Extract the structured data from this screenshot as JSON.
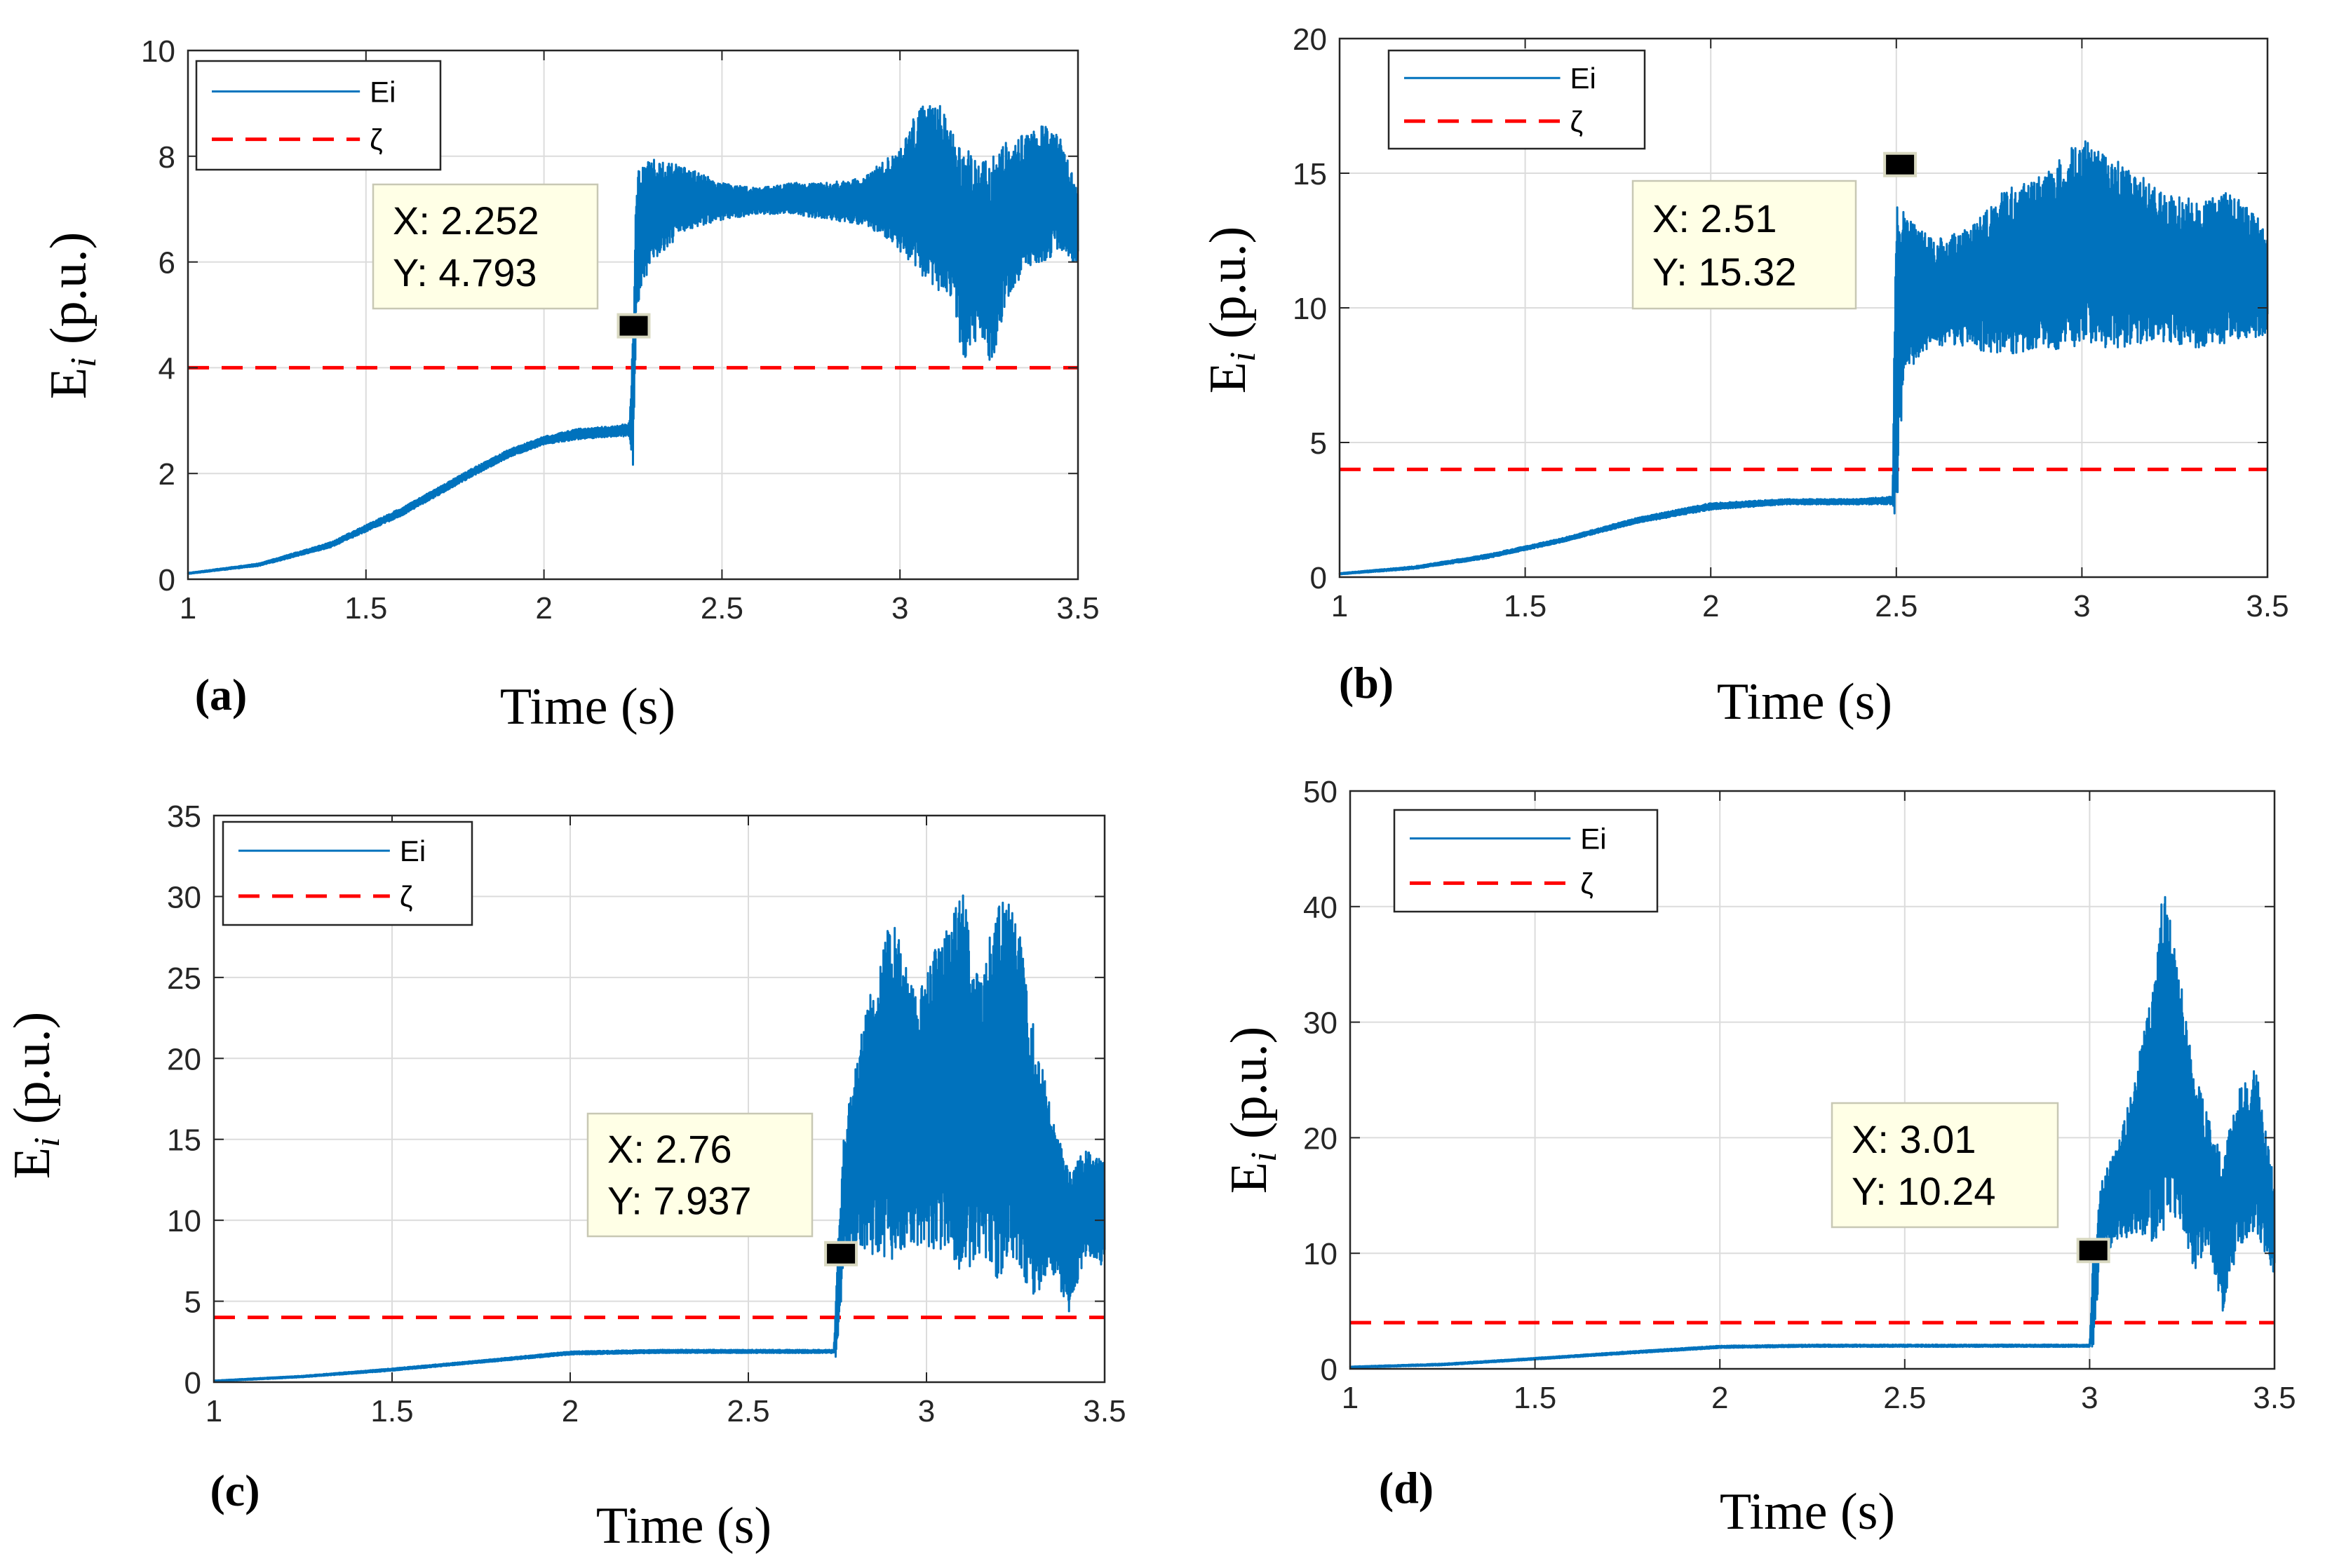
{
  "chart_data": [
    {
      "id": "a",
      "type": "line",
      "panel_label": "(a)",
      "xlabel": "Time (s)",
      "ylabel_main": "E",
      "ylabel_sub": "i",
      "ylabel_rest": " (p.u.)",
      "xlim": [
        1,
        3.5
      ],
      "ylim": [
        0,
        10
      ],
      "xticks": [
        1,
        1.5,
        2,
        2.5,
        3,
        3.5
      ],
      "xtick_labels": [
        "1",
        "1.5",
        "2",
        "2.5",
        "3",
        "3.5"
      ],
      "yticks": [
        0,
        2,
        4,
        6,
        8,
        10
      ],
      "ytick_labels": [
        "0",
        "2",
        "4",
        "6",
        "8",
        "10"
      ],
      "grid": true,
      "legend": [
        {
          "label": "Ei",
          "style": "solid",
          "color": "#0072BD"
        },
        {
          "label": "ζ",
          "style": "dashed",
          "color": "#FF0000"
        }
      ],
      "threshold": 4,
      "datatip": {
        "x": 2.252,
        "y": 4.793,
        "x_text": "X: 2.252",
        "y_text": "Y: 4.793"
      },
      "envelope": [
        [
          1.0,
          0.1,
          0.12
        ],
        [
          1.2,
          0.25,
          0.3
        ],
        [
          1.4,
          0.6,
          0.7
        ],
        [
          1.6,
          1.2,
          1.35
        ],
        [
          1.8,
          1.95,
          2.1
        ],
        [
          1.9,
          2.3,
          2.45
        ],
        [
          2.0,
          2.55,
          2.7
        ],
        [
          2.1,
          2.65,
          2.85
        ],
        [
          2.2,
          2.7,
          2.9
        ],
        [
          2.24,
          2.7,
          2.95
        ],
        [
          2.25,
          2.1,
          4.8
        ],
        [
          2.26,
          5.1,
          7.7
        ],
        [
          2.3,
          6.0,
          7.95
        ],
        [
          2.4,
          6.6,
          7.8
        ],
        [
          2.5,
          6.8,
          7.5
        ],
        [
          2.6,
          6.9,
          7.4
        ],
        [
          2.7,
          6.9,
          7.5
        ],
        [
          2.8,
          6.8,
          7.5
        ],
        [
          2.9,
          6.7,
          7.6
        ],
        [
          2.95,
          6.5,
          7.9
        ],
        [
          3.0,
          6.2,
          8.1
        ],
        [
          3.05,
          5.8,
          8.9
        ],
        [
          3.1,
          5.5,
          9.1
        ],
        [
          3.15,
          5.2,
          8.5
        ],
        [
          3.18,
          4.0,
          8.2
        ],
        [
          3.22,
          4.6,
          7.9
        ],
        [
          3.26,
          3.9,
          8.0
        ],
        [
          3.3,
          5.2,
          8.3
        ],
        [
          3.35,
          5.8,
          8.4
        ],
        [
          3.4,
          6.0,
          8.6
        ],
        [
          3.45,
          6.2,
          8.4
        ],
        [
          3.5,
          5.9,
          7.3
        ]
      ]
    },
    {
      "id": "b",
      "type": "line",
      "panel_label": "(b)",
      "xlabel": "Time (s)",
      "ylabel_main": "E",
      "ylabel_sub": "i",
      "ylabel_rest": " (p.u.)",
      "xlim": [
        1,
        3.5
      ],
      "ylim": [
        0,
        20
      ],
      "xticks": [
        1,
        1.5,
        2,
        2.5,
        3,
        3.5
      ],
      "xtick_labels": [
        "1",
        "1.5",
        "2",
        "2.5",
        "3",
        "3.5"
      ],
      "yticks": [
        0,
        5,
        10,
        15,
        20
      ],
      "ytick_labels": [
        "0",
        "5",
        "10",
        "15",
        "20"
      ],
      "grid": true,
      "legend": [
        {
          "label": "Ei",
          "style": "solid",
          "color": "#0072BD"
        },
        {
          "label": "ζ",
          "style": "dashed",
          "color": "#FF0000"
        }
      ],
      "threshold": 4,
      "datatip": {
        "x": 2.51,
        "y": 15.32,
        "x_text": "X: 2.51",
        "y_text": "Y: 15.32"
      },
      "envelope": [
        [
          1.0,
          0.1,
          0.15
        ],
        [
          1.2,
          0.3,
          0.4
        ],
        [
          1.4,
          0.7,
          0.85
        ],
        [
          1.6,
          1.3,
          1.45
        ],
        [
          1.8,
          2.0,
          2.2
        ],
        [
          2.0,
          2.5,
          2.75
        ],
        [
          2.2,
          2.7,
          2.9
        ],
        [
          2.4,
          2.7,
          2.9
        ],
        [
          2.49,
          2.7,
          3.0
        ],
        [
          2.5,
          1.7,
          15.3
        ],
        [
          2.52,
          7.5,
          13.5
        ],
        [
          2.6,
          8.6,
          12.5
        ],
        [
          2.7,
          8.5,
          13.0
        ],
        [
          2.8,
          8.2,
          14.5
        ],
        [
          2.9,
          8.4,
          15.0
        ],
        [
          3.0,
          8.6,
          16.3
        ],
        [
          3.1,
          8.5,
          15.5
        ],
        [
          3.2,
          8.8,
          14.5
        ],
        [
          3.3,
          8.5,
          14.0
        ],
        [
          3.4,
          8.7,
          14.3
        ],
        [
          3.5,
          9.0,
          13.0
        ]
      ]
    },
    {
      "id": "c",
      "type": "line",
      "panel_label": "(c)",
      "xlabel": "Time (s)",
      "ylabel_main": "E",
      "ylabel_sub": "i",
      "ylabel_rest": " (p.u.)",
      "xlim": [
        1,
        3.5
      ],
      "ylim": [
        0,
        35
      ],
      "xticks": [
        1,
        1.5,
        2,
        2.5,
        3,
        3.5
      ],
      "xtick_labels": [
        "1",
        "1.5",
        "2",
        "2.5",
        "3",
        "3.5"
      ],
      "yticks": [
        0,
        5,
        10,
        15,
        20,
        25,
        30,
        35
      ],
      "ytick_labels": [
        "0",
        "5",
        "10",
        "15",
        "20",
        "25",
        "30",
        "35"
      ],
      "grid": true,
      "legend": [
        {
          "label": "Ei",
          "style": "solid",
          "color": "#0072BD"
        },
        {
          "label": "ζ",
          "style": "dashed",
          "color": "#FF0000"
        }
      ],
      "threshold": 4,
      "datatip": {
        "x": 2.76,
        "y": 7.937,
        "x_text": "X: 2.76",
        "y_text": "Y: 7.937"
      },
      "envelope": [
        [
          1.0,
          0.05,
          0.1
        ],
        [
          1.25,
          0.3,
          0.4
        ],
        [
          1.5,
          0.7,
          0.85
        ],
        [
          1.75,
          1.2,
          1.35
        ],
        [
          2.0,
          1.7,
          1.9
        ],
        [
          2.25,
          1.8,
          2.0
        ],
        [
          2.5,
          1.8,
          2.0
        ],
        [
          2.74,
          1.8,
          2.0
        ],
        [
          2.75,
          1.3,
          7.9
        ],
        [
          2.77,
          8.0,
          16.0
        ],
        [
          2.82,
          8.0,
          22.0
        ],
        [
          2.9,
          7.5,
          29.0
        ],
        [
          2.97,
          8.5,
          24.0
        ],
        [
          3.05,
          8.0,
          28.0
        ],
        [
          3.1,
          6.5,
          30.5
        ],
        [
          3.15,
          8.0,
          25.0
        ],
        [
          3.2,
          6.0,
          29.5
        ],
        [
          3.25,
          7.5,
          30.0
        ],
        [
          3.3,
          5.0,
          22.0
        ],
        [
          3.35,
          7.0,
          17.0
        ],
        [
          3.4,
          4.3,
          13.0
        ],
        [
          3.45,
          8.0,
          14.5
        ],
        [
          3.5,
          7.0,
          14.0
        ]
      ]
    },
    {
      "id": "d",
      "type": "line",
      "panel_label": "(d)",
      "xlabel": "Time (s)",
      "ylabel_main": "E",
      "ylabel_sub": "i",
      "ylabel_rest": " (p.u.)",
      "xlim": [
        1,
        3.5
      ],
      "ylim": [
        0,
        50
      ],
      "xticks": [
        1,
        1.5,
        2,
        2.5,
        3,
        3.5
      ],
      "xtick_labels": [
        "1",
        "1.5",
        "2",
        "2.5",
        "3",
        "3.5"
      ],
      "yticks": [
        0,
        10,
        20,
        30,
        40,
        50
      ],
      "ytick_labels": [
        "0",
        "10",
        "20",
        "30",
        "40",
        "50"
      ],
      "grid": true,
      "legend": [
        {
          "label": "Ei",
          "style": "solid",
          "color": "#0072BD"
        },
        {
          "label": "ζ",
          "style": "dashed",
          "color": "#FF0000"
        }
      ],
      "threshold": 4,
      "datatip": {
        "x": 3.01,
        "y": 10.24,
        "x_text": "X: 3.01",
        "y_text": "Y: 10.24"
      },
      "envelope": [
        [
          1.0,
          0.1,
          0.2
        ],
        [
          1.25,
          0.3,
          0.45
        ],
        [
          1.5,
          0.8,
          0.95
        ],
        [
          1.75,
          1.3,
          1.5
        ],
        [
          2.0,
          1.8,
          2.0
        ],
        [
          2.25,
          1.9,
          2.1
        ],
        [
          2.5,
          1.9,
          2.1
        ],
        [
          2.75,
          1.9,
          2.1
        ],
        [
          3.0,
          1.9,
          2.1
        ],
        [
          3.01,
          1.5,
          10.24
        ],
        [
          3.03,
          10.0,
          16.0
        ],
        [
          3.08,
          11.0,
          20.0
        ],
        [
          3.12,
          11.0,
          25.0
        ],
        [
          3.17,
          11.0,
          33.0
        ],
        [
          3.2,
          12.0,
          42.0
        ],
        [
          3.24,
          13.0,
          35.0
        ],
        [
          3.28,
          8.0,
          26.0
        ],
        [
          3.32,
          11.0,
          22.0
        ],
        [
          3.36,
          5.0,
          18.0
        ],
        [
          3.4,
          10.0,
          24.0
        ],
        [
          3.45,
          12.0,
          26.0
        ],
        [
          3.5,
          8.0,
          16.0
        ]
      ]
    }
  ]
}
